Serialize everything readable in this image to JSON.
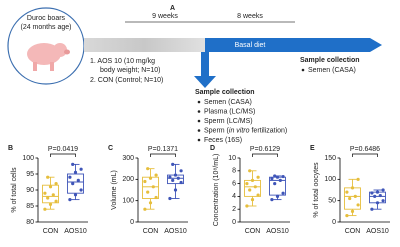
{
  "panel_a": {
    "label": "A",
    "subject": [
      "Duroc boars",
      "(24 months age)"
    ],
    "phase1": "9 weeks",
    "phase2": "8 weeks",
    "groups": [
      "1.  AOS 10 (10 mg/kg",
      "body weight; N=10)",
      "2. CON (Control; N=10)"
    ],
    "diet": "Basal diet",
    "collection1": {
      "title": "Sample collection",
      "items": [
        "Semen (CASA)"
      ]
    },
    "collection2": {
      "title": "Sample collection",
      "items": [
        [
          "Semen (CASA)"
        ],
        [
          "Plasma (LC/MS)"
        ],
        [
          "Sperm (LC/MS)"
        ],
        [
          "Sperm (",
          "in vitro",
          " fertilization)"
        ],
        [
          "Feces (16S)"
        ]
      ]
    }
  },
  "chart_data": [
    {
      "type": "box",
      "panel_label": "B",
      "ylabel": "% of total cells",
      "annotation": "P=0.0419",
      "categories": [
        "CON",
        "AOS10"
      ],
      "colors": [
        "#e6be3c",
        "#3f55b8"
      ],
      "ylim": [
        80,
        100
      ],
      "yticks": [
        80,
        85,
        90,
        95,
        100
      ],
      "boxes": [
        {
          "min": 84,
          "q1": 86,
          "median": 88,
          "q3": 91.5,
          "max": 94,
          "points": [
            84,
            85.5,
            86.5,
            87.5,
            88.5,
            89,
            91,
            92,
            94
          ]
        },
        {
          "min": 87,
          "q1": 89,
          "median": 92.5,
          "q3": 95,
          "max": 98,
          "points": [
            87,
            88.5,
            90,
            92,
            93,
            94,
            95.5,
            96.5,
            98
          ]
        }
      ]
    },
    {
      "type": "box",
      "panel_label": "C",
      "ylabel": "Volume (mL)",
      "annotation": "P=0.1371",
      "categories": [
        "CON",
        "AOS10"
      ],
      "colors": [
        "#e6be3c",
        "#3f55b8"
      ],
      "ylim": [
        0,
        300
      ],
      "yticks": [
        0,
        100,
        200,
        300
      ],
      "boxes": [
        {
          "min": 60,
          "q1": 110,
          "median": 165,
          "q3": 210,
          "max": 250,
          "points": [
            60,
            90,
            115,
            140,
            165,
            190,
            205,
            220,
            250
          ]
        },
        {
          "min": 110,
          "q1": 180,
          "median": 205,
          "q3": 220,
          "max": 270,
          "points": [
            110,
            150,
            185,
            195,
            205,
            210,
            220,
            240,
            270
          ]
        }
      ]
    },
    {
      "type": "box",
      "panel_label": "D",
      "ylabel": "Concentration (10⁸/mL)",
      "annotation": "P=0.6129",
      "categories": [
        "CON",
        "AOS10"
      ],
      "colors": [
        "#e6be3c",
        "#3f55b8"
      ],
      "ylim": [
        0,
        10
      ],
      "yticks": [
        0,
        2,
        4,
        6,
        8,
        10
      ],
      "boxes": [
        {
          "min": 2.5,
          "q1": 4,
          "median": 5.5,
          "q3": 6.5,
          "max": 8,
          "points": [
            2.5,
            3.5,
            4.2,
            5,
            5.5,
            6,
            6.5,
            7,
            8
          ]
        },
        {
          "min": 3.5,
          "q1": 4.2,
          "median": 6.5,
          "q3": 7,
          "max": 7.2,
          "points": [
            3.5,
            4,
            4.5,
            6,
            6.5,
            6.8,
            7,
            7.1,
            7.2
          ]
        }
      ]
    },
    {
      "type": "box",
      "panel_label": "E",
      "ylabel": "% of total oocytes",
      "annotation": "P=0.6486",
      "categories": [
        "CON",
        "AOS10"
      ],
      "colors": [
        "#e6be3c",
        "#3f55b8"
      ],
      "ylim": [
        0,
        150
      ],
      "yticks": [
        0,
        50,
        100,
        150
      ],
      "boxes": [
        {
          "min": 15,
          "q1": 30,
          "median": 60,
          "q3": 80,
          "max": 100,
          "points": [
            15,
            25,
            40,
            55,
            60,
            70,
            80,
            100
          ]
        },
        {
          "min": 30,
          "q1": 45,
          "median": 60,
          "q3": 70,
          "max": 75,
          "points": [
            30,
            45,
            50,
            60,
            62,
            68,
            70,
            75
          ]
        }
      ]
    }
  ]
}
